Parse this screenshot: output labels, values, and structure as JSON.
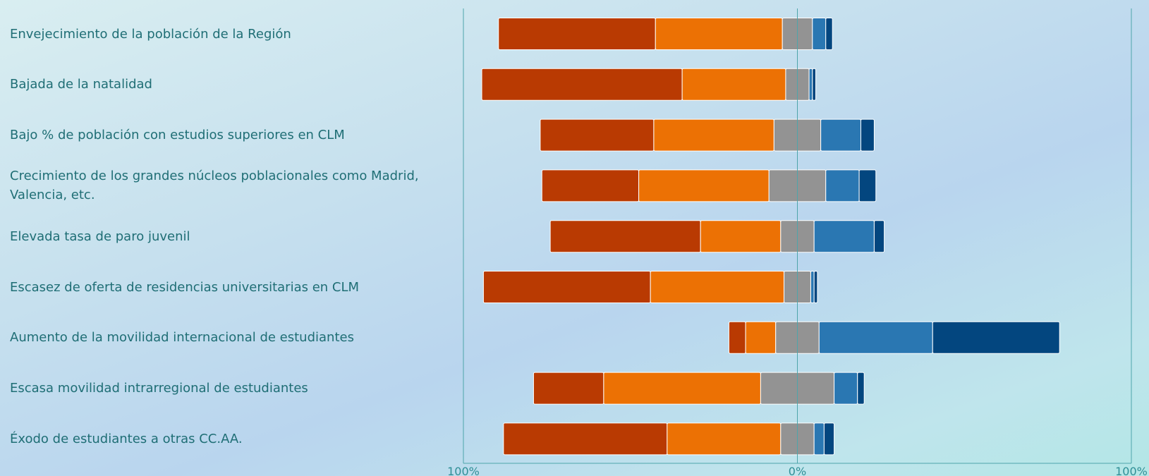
{
  "chart_data": {
    "type": "bar",
    "orientation": "horizontal",
    "stacked": "diverging",
    "categories": [
      "Envejecimiento de la población de la Región",
      "Bajada de la natalidad",
      "Bajo % de población con estudios superiores en CLM",
      "Crecimiento de los grandes núcleos poblacionales como Madrid, Valencia, etc.",
      "Elevada tasa de paro juvenil",
      "Escasez de oferta de residencias universitarias en CLM",
      "Aumento de la movilidad internacional de estudiantes",
      "Escasa movilidad intrarregional de estudiantes",
      "Éxodo de estudiantes a otras CC.AA."
    ],
    "series": [
      {
        "color": "#b93a02",
        "values": [
          47,
          60,
          34,
          29,
          45,
          50,
          5,
          21,
          49
        ]
      },
      {
        "color": "#ec7104",
        "values": [
          38,
          31,
          36,
          39,
          24,
          40,
          9,
          47,
          34
        ]
      },
      {
        "color": "#939393",
        "values": [
          9,
          7,
          14,
          17,
          10,
          8,
          13,
          22,
          10
        ]
      },
      {
        "color": "#2a77b2",
        "values": [
          4,
          1,
          12,
          10,
          18,
          1,
          34,
          7,
          3
        ]
      },
      {
        "color": "#03467f",
        "values": [
          2,
          1,
          4,
          5,
          3,
          1,
          38,
          2,
          3
        ]
      }
    ],
    "xlim": [
      -100,
      100
    ],
    "x_tick_labels": [
      "100%",
      "0%",
      "100%"
    ],
    "grid": false,
    "legend": "none"
  }
}
